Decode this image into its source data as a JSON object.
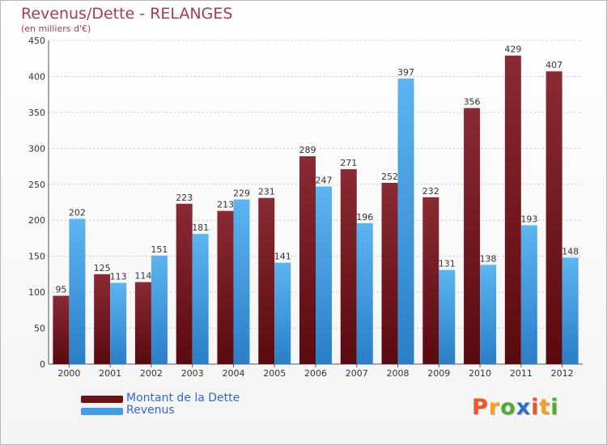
{
  "header": {
    "title": "Revenus/Dette - RELANGES",
    "subtitle": "(en milliers d'€)"
  },
  "colors": {
    "dette": "#6e1218",
    "revenus": "#3d9ee6",
    "title": "#a83a56",
    "legend_text": "#3366dd"
  },
  "legend": {
    "items": [
      {
        "label": "Montant de la Dette",
        "color": "#6e1218"
      },
      {
        "label": "Revenus",
        "color": "#3d9ee6"
      }
    ]
  },
  "logo": {
    "text": "Proxiti",
    "letter_colors": [
      "#e8562a",
      "#f2a21c",
      "#4fae2f",
      "#2e6fc4",
      "#e8562a",
      "#f2a21c",
      "#4fae2f"
    ]
  },
  "chart_data": {
    "type": "bar",
    "categories": [
      "2000",
      "2001",
      "2002",
      "2003",
      "2004",
      "2005",
      "2006",
      "2007",
      "2008",
      "2009",
      "2010",
      "2011",
      "2012"
    ],
    "series": [
      {
        "name": "Montant de la Dette",
        "values": [
          95,
          125,
          114,
          223,
          213,
          231,
          289,
          271,
          252,
          232,
          356,
          429,
          407
        ]
      },
      {
        "name": "Revenus",
        "values": [
          202,
          113,
          151,
          181,
          229,
          141,
          247,
          196,
          397,
          131,
          138,
          193,
          148
        ]
      }
    ],
    "title": "Revenus/Dette - RELANGES",
    "ylabel": "(en milliers d'€)",
    "ylim": [
      0,
      450
    ],
    "yticks": [
      0,
      50,
      100,
      150,
      200,
      250,
      300,
      350,
      400,
      450
    ],
    "grid": true,
    "legend_position": "bottom-left"
  }
}
